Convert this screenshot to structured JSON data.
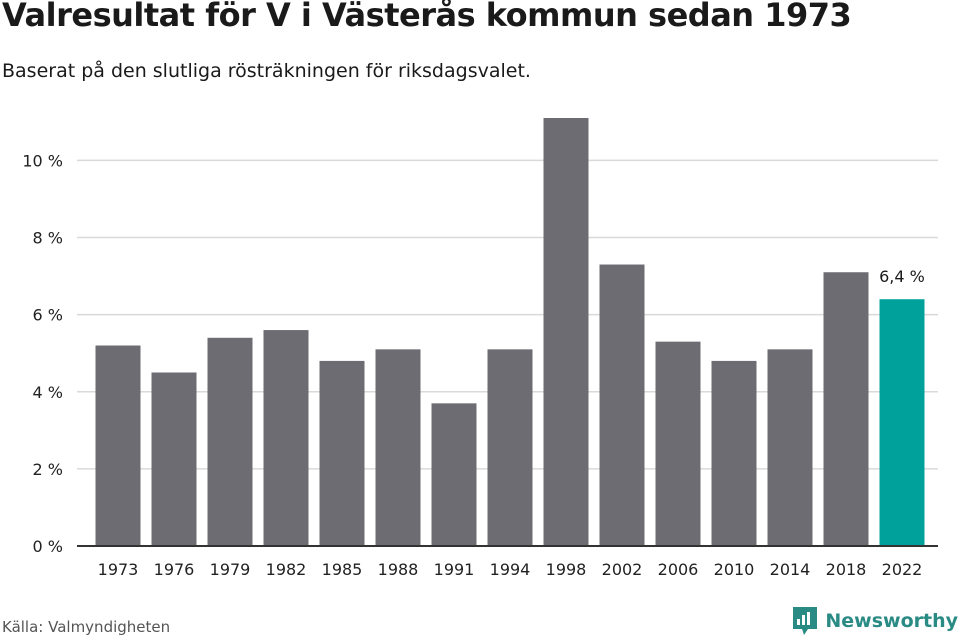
{
  "header": {
    "title": "Valresultat för V i Västerås kommun sedan 1973",
    "subtitle": "Baserat på den slutliga rösträkningen för riksdagsvalet."
  },
  "footer": {
    "source": "Källa: Valmyndigheten",
    "brand_name": "Newsworthy",
    "brand_icon": "newsworthy-logo-icon"
  },
  "colors": {
    "bar": "#6d6c72",
    "highlight": "#00a19a",
    "grid": "#d9d9d9",
    "axis": "#333333",
    "brand": "#2a8a84"
  },
  "chart_data": {
    "type": "bar",
    "categories": [
      "1973",
      "1976",
      "1979",
      "1982",
      "1985",
      "1988",
      "1991",
      "1994",
      "1998",
      "2002",
      "2006",
      "2010",
      "2014",
      "2018",
      "2022"
    ],
    "values": [
      5.2,
      4.5,
      5.4,
      5.6,
      4.8,
      5.1,
      3.7,
      5.1,
      11.1,
      7.3,
      5.3,
      4.8,
      5.1,
      7.1,
      6.4
    ],
    "ylim": [
      0,
      11.1
    ],
    "yticks": [
      0,
      2,
      4,
      6,
      8,
      10
    ],
    "ytick_labels": [
      "0 %",
      "2 %",
      "4 %",
      "6 %",
      "8 %",
      "10 %"
    ],
    "highlight_category": "2022",
    "annotations": [
      {
        "category": "2022",
        "label": "6,4 %"
      }
    ],
    "xlabel": "",
    "ylabel": "",
    "grid": true,
    "legend": "none"
  }
}
